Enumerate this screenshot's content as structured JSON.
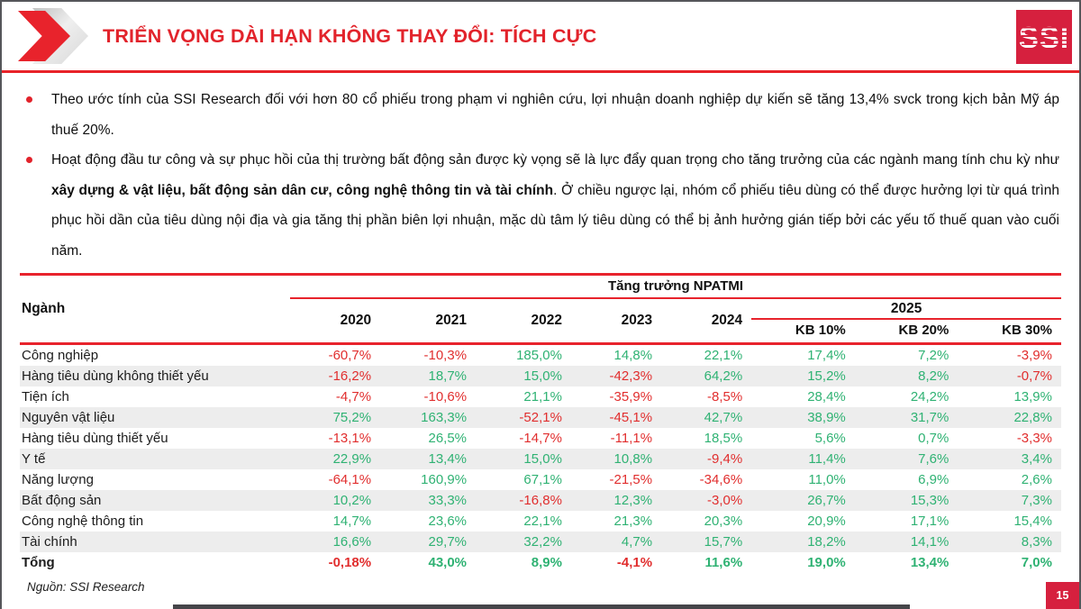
{
  "header": {
    "title": "TRIỂN VỌNG DÀI HẠN KHÔNG THAY ĐỔI: TÍCH CỰC",
    "logo_text": "SSI"
  },
  "bullets": [
    {
      "text": "Theo ước tính của SSI Research đối với hơn 80 cổ phiếu trong phạm vi nghiên cứu, lợi nhuận doanh nghiệp dự kiến sẽ tăng 13,4% svck trong kịch bản Mỹ áp thuế 20%."
    },
    {
      "pre": "Hoạt động đầu tư công và sự phục hồi của thị trường bất động sản được kỳ vọng sẽ là lực đẩy quan trọng cho tăng trưởng của các ngành mang tính chu kỳ như ",
      "bold": "xây dựng & vật liệu, bất động sản dân cư, công nghệ thông tin và tài chính",
      "post": ". Ở chiều ngược lại, nhóm cổ phiếu tiêu dùng có thể được hưởng lợi từ quá trình phục hồi dần của tiêu dùng nội địa và gia tăng thị phần biên lợi nhuận, mặc dù tâm lý tiêu dùng có thể bị ảnh hưởng gián tiếp bởi các yếu tố thuế quan vào cuối năm."
    }
  ],
  "table": {
    "row_header": "Ngành",
    "group_header": "Tăng trưởng NPATMI",
    "years": [
      "2020",
      "2021",
      "2022",
      "2023",
      "2024"
    ],
    "year_2025": "2025",
    "scenarios": [
      "KB 10%",
      "KB 20%",
      "KB 30%"
    ],
    "rows": [
      {
        "name": "Công nghiệp",
        "values": [
          "-60,7%",
          "-10,3%",
          "185,0%",
          "14,8%",
          "22,1%",
          "17,4%",
          "7,2%",
          "-3,9%"
        ]
      },
      {
        "name": "Hàng tiêu dùng không thiết yếu",
        "values": [
          "-16,2%",
          "18,7%",
          "15,0%",
          "-42,3%",
          "64,2%",
          "15,2%",
          "8,2%",
          "-0,7%"
        ]
      },
      {
        "name": "Tiện ích",
        "values": [
          "-4,7%",
          "-10,6%",
          "21,1%",
          "-35,9%",
          "-8,5%",
          "28,4%",
          "24,2%",
          "13,9%"
        ]
      },
      {
        "name": "Nguyên vật liệu",
        "values": [
          "75,2%",
          "163,3%",
          "-52,1%",
          "-45,1%",
          "42,7%",
          "38,9%",
          "31,7%",
          "22,8%"
        ]
      },
      {
        "name": "Hàng tiêu dùng thiết yếu",
        "values": [
          "-13,1%",
          "26,5%",
          "-14,7%",
          "-11,1%",
          "18,5%",
          "5,6%",
          "0,7%",
          "-3,3%"
        ]
      },
      {
        "name": "Y tế",
        "values": [
          "22,9%",
          "13,4%",
          "15,0%",
          "10,8%",
          "-9,4%",
          "11,4%",
          "7,6%",
          "3,4%"
        ]
      },
      {
        "name": "Năng lượng",
        "values": [
          "-64,1%",
          "160,9%",
          "67,1%",
          "-21,5%",
          "-34,6%",
          "11,0%",
          "6,9%",
          "2,6%"
        ]
      },
      {
        "name": "Bất động sản",
        "values": [
          "10,2%",
          "33,3%",
          "-16,8%",
          "12,3%",
          "-3,0%",
          "26,7%",
          "15,3%",
          "7,3%"
        ]
      },
      {
        "name": "Công nghệ thông tin",
        "values": [
          "14,7%",
          "23,6%",
          "22,1%",
          "21,3%",
          "20,3%",
          "20,9%",
          "17,1%",
          "15,4%"
        ]
      },
      {
        "name": "Tài chính",
        "values": [
          "16,6%",
          "29,7%",
          "32,2%",
          "4,7%",
          "15,7%",
          "18,2%",
          "14,1%",
          "8,3%"
        ]
      }
    ],
    "total": {
      "name": "Tổng",
      "values": [
        "-0,18%",
        "43,0%",
        "8,9%",
        "-4,1%",
        "11,6%",
        "19,0%",
        "13,4%",
        "7,0%"
      ]
    }
  },
  "footer": {
    "source": "Nguồn: SSI Research",
    "page": "15"
  },
  "colors": {
    "accent_red": "#e8232c",
    "logo_red": "#d6203e",
    "positive_green": "#2fb273",
    "negative_red": "#e12e2e",
    "stripe_gray": "#ededed"
  }
}
